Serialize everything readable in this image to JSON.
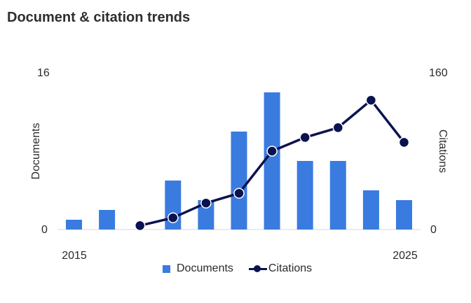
{
  "title": "Document & citation trends",
  "chart_data": {
    "type": "bar+line",
    "x": [
      2015,
      2016,
      2017,
      2018,
      2019,
      2020,
      2021,
      2022,
      2023,
      2024,
      2025
    ],
    "x_tick_labels": [
      "2015",
      "2025"
    ],
    "series": [
      {
        "name": "Documents",
        "type": "bar",
        "axis": "left",
        "values": [
          1,
          2,
          0,
          5,
          3,
          10,
          14,
          7,
          7,
          4,
          3
        ]
      },
      {
        "name": "Citations",
        "type": "line",
        "axis": "right",
        "values": [
          null,
          null,
          4,
          12,
          27,
          37,
          80,
          94,
          104,
          132,
          89
        ]
      }
    ],
    "left_axis": {
      "label": "Documents",
      "min": 0,
      "max": 16,
      "min_label": "0",
      "max_label": "16"
    },
    "right_axis": {
      "label": "Citations",
      "min": 0,
      "max": 160,
      "min_label": "0",
      "max_label": "160"
    },
    "colors": {
      "bar": "#3a7be0",
      "line": "#0b1250",
      "marker_stroke": "#ffffff",
      "baseline": "#d9d9d9"
    },
    "legend_position": "bottom"
  }
}
